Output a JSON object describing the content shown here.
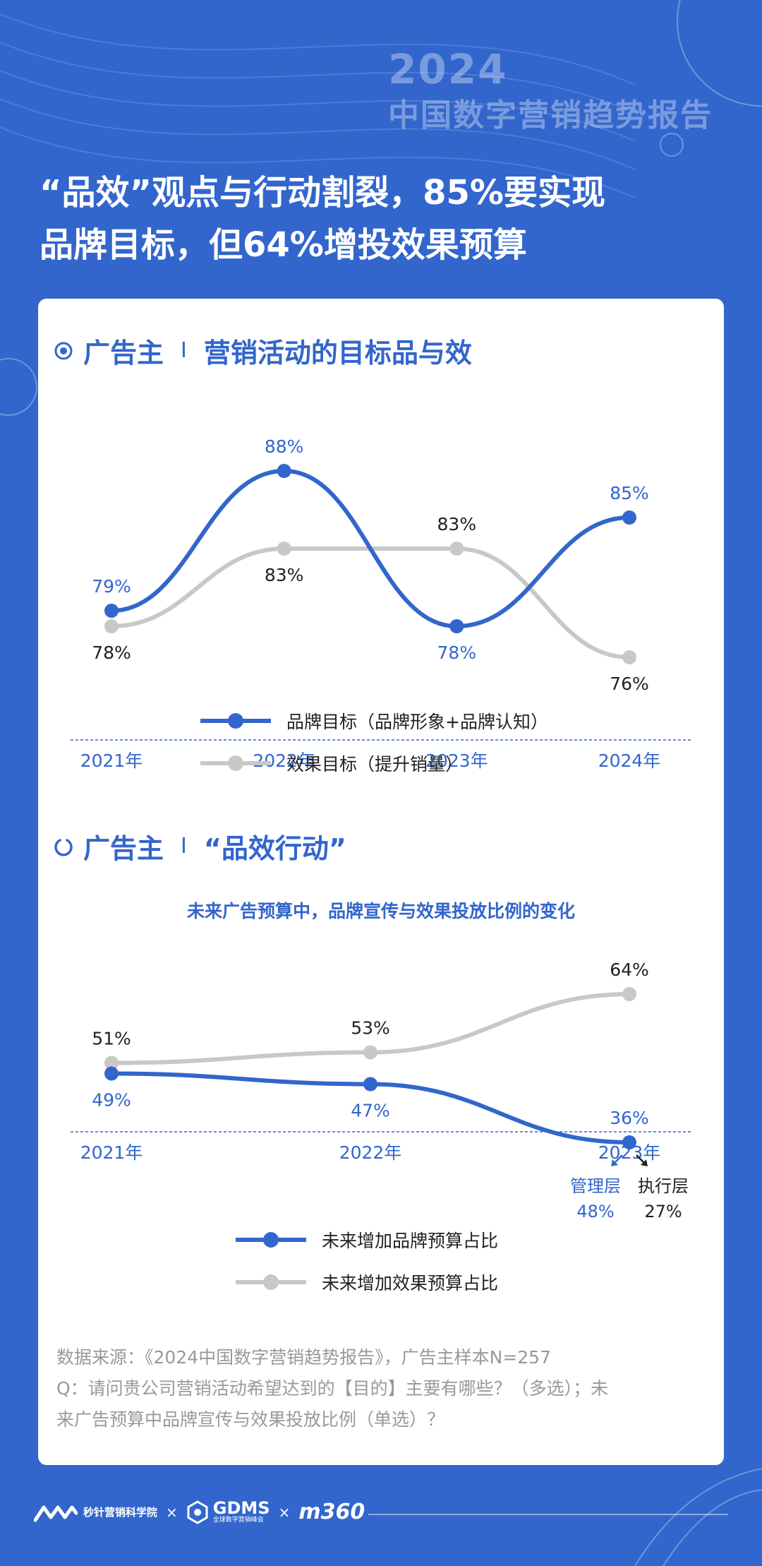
{
  "report": {
    "year": "2024",
    "name": "中国数字营销趋势报告"
  },
  "headline": {
    "line1": "“品效”观点与行动割裂，85%要实现",
    "line2": "品牌目标，但64%增投效果预算"
  },
  "section1": {
    "title_left": "广告主",
    "separator": "I",
    "title_right": "营销活动的目标品与效"
  },
  "section2": {
    "title_left": "广告主",
    "separator": "I",
    "title_right": "“品效行动”",
    "subtitle": "未来广告预算中，品牌宣传与效果投放比例的变化"
  },
  "colors": {
    "background": "#3266cc",
    "primary_blue": "#3266cc",
    "gray_series": "#c8c8c8",
    "footnote_gray": "#999999"
  },
  "chart_data": [
    {
      "type": "line",
      "categories": [
        "2021年",
        "2022年",
        "2023年",
        "2024年"
      ],
      "series": [
        {
          "name": "品牌目标（品牌形象+品牌认知）",
          "values": [
            79,
            88,
            78,
            85
          ],
          "labels": [
            "79%",
            "88%",
            "78%",
            "85%"
          ],
          "color": "#3266cc"
        },
        {
          "name": "效果目标（提升销量）",
          "values": [
            78,
            83,
            83,
            76
          ],
          "labels": [
            "78%",
            "83%",
            "83%",
            "76%"
          ],
          "color": "#c8c8c8"
        }
      ],
      "ylim": [
        74,
        90
      ],
      "grid": false,
      "legend_position": "bottom"
    },
    {
      "type": "line",
      "categories": [
        "2021年",
        "2022年",
        "2023年"
      ],
      "series": [
        {
          "name": "未来增加品牌预算占比",
          "values": [
            49,
            47,
            36
          ],
          "labels": [
            "49%",
            "47%",
            "36%"
          ],
          "color": "#3266cc"
        },
        {
          "name": "未来增加效果预算占比",
          "values": [
            51,
            53,
            64
          ],
          "labels": [
            "51%",
            "53%",
            "64%"
          ],
          "color": "#c8c8c8"
        }
      ],
      "ylim": [
        30,
        70
      ],
      "grid": false,
      "legend_position": "bottom",
      "annotations": [
        {
          "label": "管理层",
          "value": "48%",
          "color": "#3266cc"
        },
        {
          "label": "执行层",
          "value": "27%",
          "color": "#222222"
        }
      ]
    }
  ],
  "footnote": {
    "line1": "数据来源：《2024中国数字营销趋势报告》，广告主样本N=257",
    "line2": "Q：请问贵公司营销活动希望达到的【目的】主要有哪些？（多选）；未",
    "line3": "来广告预算中品牌宣传与效果投放比例（单选）？"
  },
  "footer": {
    "org1": "秒针营销科学院",
    "times": "×",
    "org2": "GDMS",
    "org2_sub": "全球数字营销峰会",
    "org3": "m360"
  }
}
